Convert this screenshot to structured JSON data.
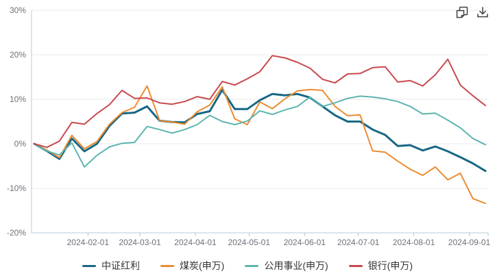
{
  "toolbar": {
    "icons": [
      "copy-icon",
      "download-icon"
    ]
  },
  "chart_data": {
    "type": "line",
    "title": "",
    "xlabel": "",
    "ylabel": "",
    "ylim": [
      -20,
      30
    ],
    "grid": true,
    "legend_position": "bottom",
    "y_tick_values": [
      30,
      20,
      10,
      0,
      -10,
      -20
    ],
    "y_tick_labels": [
      "30%",
      "20%",
      "10%",
      "0%",
      "-10%",
      "-20%"
    ],
    "x_tick_labels": [
      "2024-02-01",
      "2024-03-01",
      "2024-04-01",
      "2024-05-01",
      "2024-06-01",
      "2024-07-01",
      "2024-08-01",
      "2024-09-01"
    ],
    "x": [
      "2024-01-02",
      "2024-01-09",
      "2024-01-16",
      "2024-01-23",
      "2024-01-30",
      "2024-02-06",
      "2024-02-13",
      "2024-02-20",
      "2024-02-27",
      "2024-03-05",
      "2024-03-12",
      "2024-03-19",
      "2024-03-26",
      "2024-04-02",
      "2024-04-09",
      "2024-04-16",
      "2024-04-23",
      "2024-04-30",
      "2024-05-07",
      "2024-05-14",
      "2024-05-21",
      "2024-05-28",
      "2024-06-04",
      "2024-06-11",
      "2024-06-18",
      "2024-06-25",
      "2024-07-02",
      "2024-07-09",
      "2024-07-16",
      "2024-07-23",
      "2024-07-30",
      "2024-08-06",
      "2024-08-13",
      "2024-08-20",
      "2024-08-27",
      "2024-09-03",
      "2024-09-10"
    ],
    "series": [
      {
        "name": "中证红利",
        "color": "#176884",
        "line_width": 3,
        "values": [
          0,
          -1.6,
          -3.4,
          1.2,
          -1.7,
          0.0,
          4.0,
          6.8,
          7.0,
          8.4,
          5.2,
          4.9,
          4.8,
          6.7,
          7.3,
          12.1,
          7.8,
          7.8,
          9.8,
          11.2,
          10.9,
          11.2,
          10.4,
          8.4,
          6.4,
          5.0,
          5.0,
          3.2,
          2.0,
          -0.5,
          -0.3,
          -1.5,
          -0.6,
          -1.7,
          -3.0,
          -4.4,
          -6.1
        ]
      },
      {
        "name": "煤炭(申万)",
        "color": "#ec8b31",
        "line_width": 2,
        "values": [
          0,
          -1.4,
          -3.1,
          1.9,
          -1.1,
          0.5,
          4.4,
          7.0,
          8.2,
          13.0,
          5.2,
          4.9,
          4.4,
          7.2,
          8.7,
          12.8,
          5.6,
          4.3,
          9.4,
          7.9,
          10.1,
          11.9,
          12.2,
          12.0,
          8.4,
          6.3,
          6.5,
          -1.6,
          -1.9,
          -3.9,
          -5.7,
          -7.1,
          -5.2,
          -8.1,
          -6.6,
          -12.3,
          -13.4
        ]
      },
      {
        "name": "公用事业(申万)",
        "color": "#5cb5ae",
        "line_width": 2,
        "values": [
          0,
          -1.6,
          -2.5,
          0.2,
          -5.2,
          -2.6,
          -0.7,
          0.1,
          0.3,
          3.9,
          3.2,
          2.4,
          3.2,
          4.3,
          6.4,
          5.0,
          4.3,
          5.1,
          7.4,
          6.6,
          7.6,
          8.4,
          10.5,
          8.4,
          9.2,
          10.2,
          10.7,
          10.5,
          10.1,
          9.5,
          8.4,
          6.7,
          6.9,
          5.3,
          3.6,
          1.2,
          -0.2
        ]
      },
      {
        "name": "银行(申万)",
        "color": "#c9494d",
        "line_width": 2,
        "values": [
          0,
          -0.8,
          0.6,
          4.8,
          4.4,
          6.8,
          8.8,
          12.0,
          10.2,
          10.3,
          9.2,
          8.9,
          9.5,
          10.6,
          10.0,
          14.0,
          13.2,
          14.6,
          16.2,
          19.8,
          19.3,
          18.3,
          17.0,
          14.5,
          13.7,
          15.7,
          15.8,
          17.1,
          17.3,
          13.9,
          14.2,
          13.0,
          15.5,
          19.0,
          13.2,
          10.8,
          8.6
        ]
      }
    ],
    "style": {
      "grid_color": "#e9e9e9",
      "axis_color": "#b5cbd7",
      "tick_color": "#b9c4cc",
      "label_color": "#6e7079",
      "legend_text_color": "#333333"
    }
  }
}
